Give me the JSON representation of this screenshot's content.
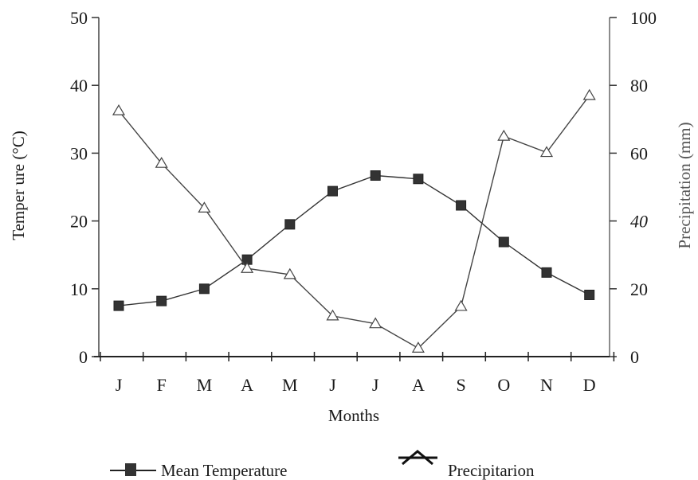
{
  "chart_data": {
    "type": "line",
    "categories": [
      "J",
      "F",
      "M",
      "A",
      "M",
      "J",
      "J",
      "A",
      "S",
      "O",
      "N",
      "D"
    ],
    "xlabel": "Months",
    "ylabel_left": "Temper  ure (°C)",
    "ylabel_right": "Precipitation (mm)",
    "ylim_left": [
      0,
      50
    ],
    "ylim_right": [
      0,
      100
    ],
    "yticks_left": [
      "0",
      "10",
      "20",
      "30",
      "40",
      "50"
    ],
    "yticks_right": [
      "0",
      "20",
      "40",
      "60",
      "80",
      "100"
    ],
    "grid": false,
    "legend_position": "bottom",
    "series": [
      {
        "name": "Mean Temperature",
        "axis": "left",
        "marker": "square",
        "color": "#333333",
        "values": [
          7.5,
          8.2,
          10.0,
          14.3,
          19.5,
          24.4,
          26.7,
          26.2,
          22.3,
          16.9,
          12.4,
          9.1
        ]
      },
      {
        "name": "Precipitarion",
        "axis": "right",
        "marker": "triangle",
        "color": "#444444",
        "values": [
          72.5,
          57.0,
          43.8,
          26.0,
          24.2,
          12.0,
          9.7,
          2.5,
          14.8,
          65.0,
          60.2,
          77.0
        ]
      }
    ]
  }
}
